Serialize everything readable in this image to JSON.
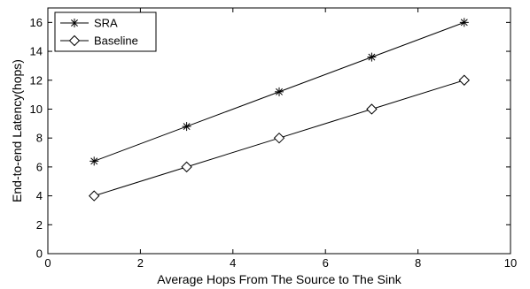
{
  "chart_data": {
    "type": "line",
    "xlabel": "Average Hops From The Source to The Sink",
    "ylabel": "End-to-end Latency(hops)",
    "xlim": [
      0,
      10
    ],
    "ylim": [
      0,
      17
    ],
    "xticks": [
      0,
      2,
      4,
      6,
      8,
      10
    ],
    "yticks": [
      0,
      2,
      4,
      6,
      8,
      10,
      12,
      14,
      16
    ],
    "grid": false,
    "legend_position": "top-left",
    "x": [
      1,
      3,
      5,
      7,
      9
    ],
    "series": [
      {
        "name": "SRA",
        "marker": "asterisk",
        "color": "#000000",
        "values": [
          6.4,
          8.8,
          11.2,
          13.6,
          16.0
        ]
      },
      {
        "name": "Baseline",
        "marker": "diamond",
        "color": "#000000",
        "values": [
          4.0,
          6.0,
          8.0,
          10.0,
          12.0
        ]
      }
    ]
  }
}
